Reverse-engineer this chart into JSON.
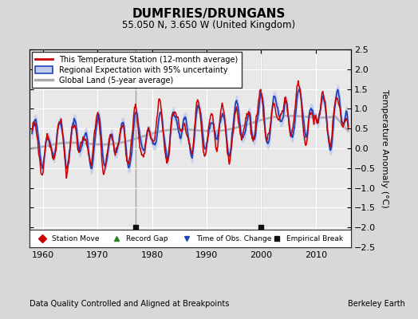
{
  "title": "DUMFRIES/DRUNGANS",
  "subtitle": "55.050 N, 3.650 W (United Kingdom)",
  "ylabel": "Temperature Anomaly (°C)",
  "footer_left": "Data Quality Controlled and Aligned at Breakpoints",
  "footer_right": "Berkeley Earth",
  "xlim": [
    1957.5,
    2016.5
  ],
  "ylim": [
    -2.5,
    2.5
  ],
  "yticks": [
    -2.5,
    -2,
    -1.5,
    -1,
    -0.5,
    0,
    0.5,
    1,
    1.5,
    2,
    2.5
  ],
  "xticks": [
    1960,
    1970,
    1980,
    1990,
    2000,
    2010
  ],
  "bg_color": "#d8d8d8",
  "plot_bg_color": "#e8e8e8",
  "station_color": "#cc0000",
  "regional_color": "#2244bb",
  "regional_fill_color": "#c0ccee",
  "global_color": "#aaaaaa",
  "empirical_breaks": [
    1977.0,
    2000.0
  ],
  "empirical_break_color": "#111111",
  "grid_color": "#ffffff",
  "vline_color": "#888888"
}
